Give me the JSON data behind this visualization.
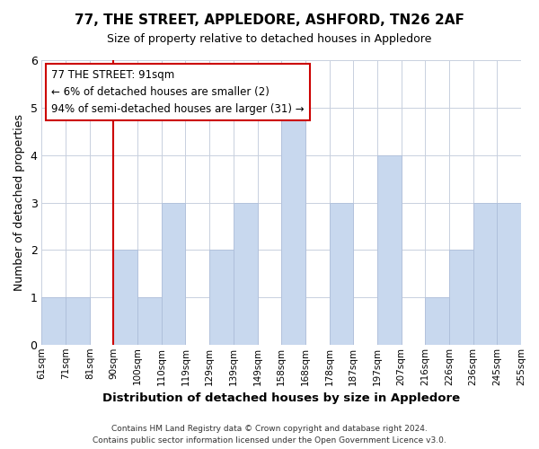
{
  "title": "77, THE STREET, APPLEDORE, ASHFORD, TN26 2AF",
  "subtitle": "Size of property relative to detached houses in Appledore",
  "xlabel": "Distribution of detached houses by size in Appledore",
  "ylabel": "Number of detached properties",
  "bin_labels": [
    "61sqm",
    "71sqm",
    "81sqm",
    "90sqm",
    "100sqm",
    "110sqm",
    "119sqm",
    "129sqm",
    "139sqm",
    "149sqm",
    "158sqm",
    "168sqm",
    "178sqm",
    "187sqm",
    "197sqm",
    "207sqm",
    "216sqm",
    "226sqm",
    "236sqm",
    "245sqm",
    "255sqm"
  ],
  "bar_heights": [
    1,
    1,
    0,
    2,
    1,
    3,
    0,
    2,
    3,
    0,
    5,
    0,
    3,
    0,
    4,
    0,
    1,
    2,
    3,
    3
  ],
  "bar_color": "#c8d8ee",
  "bar_edge_color": "#aabbd8",
  "marker_line_color": "#cc0000",
  "ylim": [
    0,
    6
  ],
  "yticks": [
    0,
    1,
    2,
    3,
    4,
    5,
    6
  ],
  "annotation_text": "77 THE STREET: 91sqm\n← 6% of detached houses are smaller (2)\n94% of semi-detached houses are larger (31) →",
  "footer": "Contains HM Land Registry data © Crown copyright and database right 2024.\nContains public sector information licensed under the Open Government Licence v3.0.",
  "background_color": "#ffffff",
  "grid_color": "#c8d0de"
}
